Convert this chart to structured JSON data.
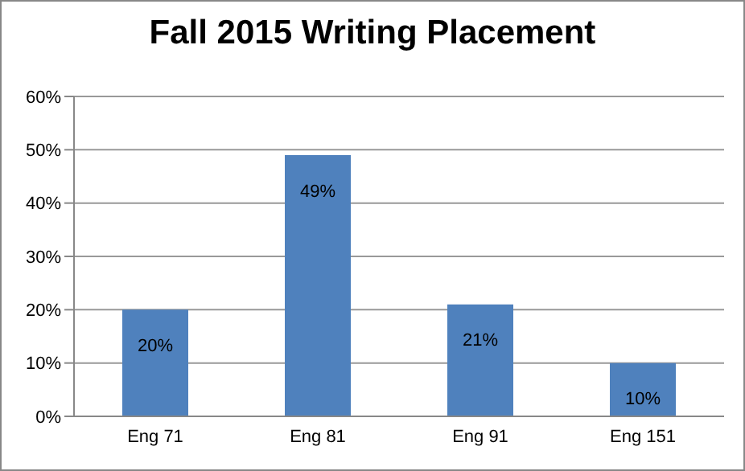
{
  "chart_data": {
    "type": "bar",
    "title": "Fall 2015 Writing Placement",
    "categories": [
      "Eng 71",
      "Eng 81",
      "Eng 91",
      "Eng 151"
    ],
    "values": [
      20,
      49,
      21,
      10
    ],
    "value_labels": [
      "20%",
      "49%",
      "21%",
      "10%"
    ],
    "color": "#4f81bd",
    "ylim": [
      0,
      60
    ],
    "yticks": [
      {
        "value": 0,
        "label": "0%"
      },
      {
        "value": 10,
        "label": "10%"
      },
      {
        "value": 20,
        "label": "20%"
      },
      {
        "value": 30,
        "label": "30%"
      },
      {
        "value": 40,
        "label": "40%"
      },
      {
        "value": 50,
        "label": "50%"
      },
      {
        "value": 60,
        "label": "60%"
      }
    ],
    "grid": "y",
    "legend": false
  }
}
